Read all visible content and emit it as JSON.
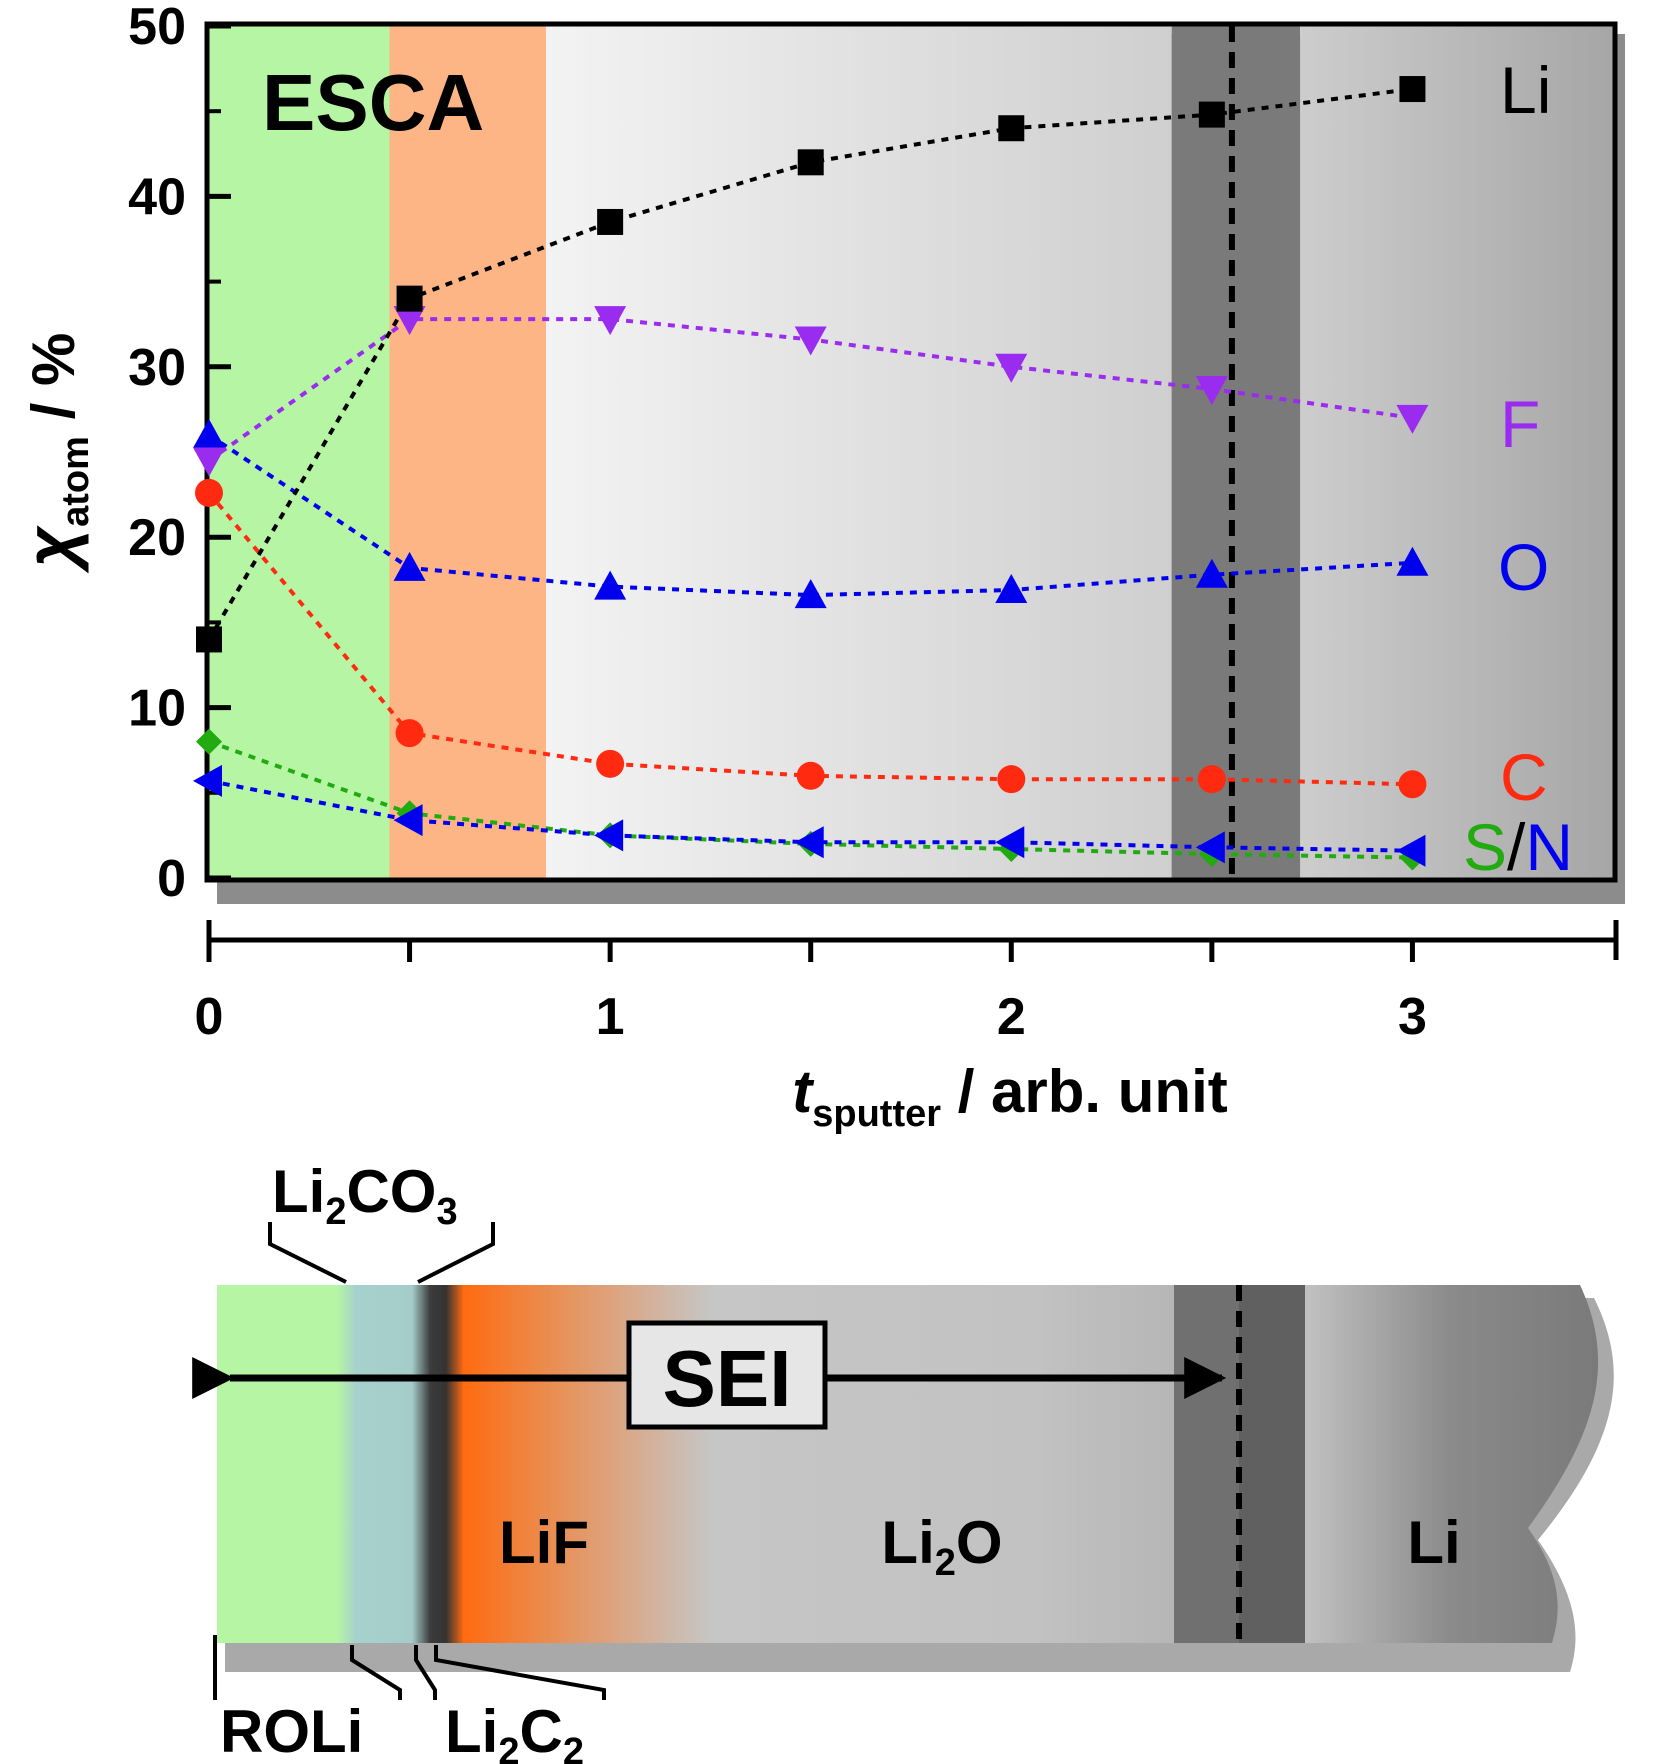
{
  "chart_data": {
    "type": "scatter",
    "title": "",
    "badge": "ESCA",
    "xlabel": {
      "main": "t",
      "sub": "sputter",
      "rest": " / arb. unit"
    },
    "ylabel": {
      "main": "χ",
      "sub": "atom",
      "rest": " / %"
    },
    "xlim": [
      0,
      3.5
    ],
    "ylim": [
      0,
      50
    ],
    "xticks": [
      "0",
      "1",
      "2",
      "3"
    ],
    "yticks": [
      "0",
      "10",
      "20",
      "30",
      "40",
      "50"
    ],
    "grid": false,
    "legend": "labels at right end of each series",
    "sei_boundary_x": 2.55,
    "regions": [
      {
        "name": "ROLi",
        "x": [
          0,
          0.45
        ],
        "color": "#b6f5a4"
      },
      {
        "name": "Li2CO3",
        "x": [
          0.45,
          0.84
        ],
        "color": "#fdb585"
      },
      {
        "name": "LiF/Li2O",
        "x": [
          0.84,
          2.4
        ],
        "color": "#e0e0e0"
      },
      {
        "name": "boundary",
        "x": [
          2.4,
          2.72
        ],
        "color": "#7a7a7a"
      },
      {
        "name": "Li",
        "x": [
          2.72,
          3.5
        ],
        "color": "#b4b4b4"
      }
    ],
    "series": [
      {
        "name": "Li",
        "color": "#000000",
        "label_color": "#000000",
        "marker": "square",
        "x": [
          0,
          0.5,
          1,
          1.5,
          2,
          2.5,
          3
        ],
        "y": [
          14,
          34,
          38.5,
          42,
          44,
          44.8,
          46.3
        ]
      },
      {
        "name": "F",
        "color": "#9a2cf0",
        "label_color": "#9a2cf0",
        "marker": "triangle-down",
        "x": [
          0,
          0.5,
          1,
          1.5,
          2,
          2.5,
          3
        ],
        "y": [
          24.5,
          32.8,
          32.8,
          31.6,
          30,
          28.7,
          27
        ]
      },
      {
        "name": "O",
        "color": "#0000ee",
        "label_color": "#0000ee",
        "marker": "triangle-up",
        "x": [
          0,
          0.5,
          1,
          1.5,
          2,
          2.5,
          3
        ],
        "y": [
          26,
          18.2,
          17.1,
          16.6,
          16.9,
          17.8,
          18.5
        ]
      },
      {
        "name": "C",
        "color": "#ff2a10",
        "label_color": "#ff2a10",
        "marker": "circle",
        "x": [
          0,
          0.5,
          1,
          1.5,
          2,
          2.5,
          3
        ],
        "y": [
          22.6,
          8.5,
          6.7,
          6,
          5.8,
          5.8,
          5.5
        ]
      },
      {
        "name": "S",
        "color": "#22aa11",
        "label_color": "#22aa11",
        "marker": "diamond",
        "x": [
          0,
          0.5,
          1,
          1.5,
          2,
          2.5,
          3
        ],
        "y": [
          8,
          3.8,
          2.5,
          2,
          1.7,
          1.4,
          1.2
        ]
      },
      {
        "name": "N",
        "color": "#0000ee",
        "label_color": "#0000ee",
        "marker": "triangle-left",
        "x": [
          0,
          0.5,
          1,
          1.5,
          2,
          2.5,
          3
        ],
        "y": [
          5.7,
          3.4,
          2.5,
          2.1,
          2.1,
          1.8,
          1.6
        ]
      }
    ],
    "label_separator": "/"
  },
  "layer_diagram": {
    "sei_label": "SEI",
    "layers": {
      "lif": "LiF",
      "li2o": {
        "main": "Li",
        "sub": "2",
        "rest": "O"
      },
      "li": "Li",
      "li2co3": {
        "a": "Li",
        "b": "2",
        "c": "CO",
        "d": "3"
      },
      "roli": "ROLi",
      "li2c2": {
        "a": "Li",
        "b": "2",
        "c": "C",
        "d": "2"
      }
    }
  }
}
